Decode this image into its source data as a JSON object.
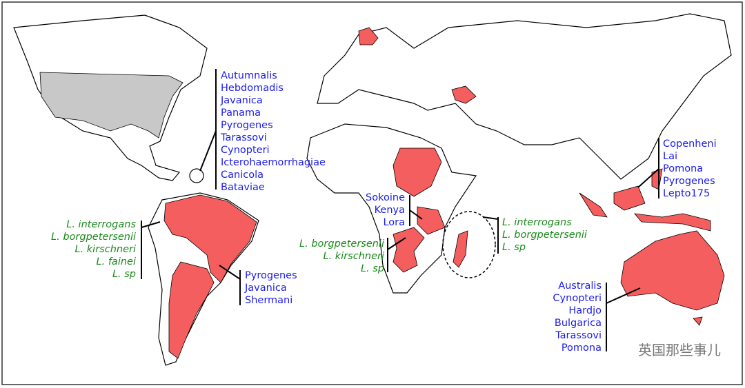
{
  "label_groups": [
    {
      "items": [
        "Autumnalis",
        "Hebdomadis",
        "Javanica",
        "Panama",
        "Pyrogenes",
        "Tarassovi",
        "Cynopteri",
        "Icterohaemorrhagiae",
        "Canicola",
        "Bataviae"
      ]
    },
    {
      "items": [
        "L. interrogans",
        "L. borgpetersenii",
        "L. kirschneri",
        "L. fainei",
        "L. sp"
      ]
    },
    {
      "items": [
        "Pyrogenes",
        "Javanica",
        "Shermani"
      ]
    },
    {
      "items": [
        "Sokoine",
        "Kenya",
        "Lora"
      ]
    },
    {
      "items": [
        "L. borgpetersenii",
        "L. kirschneri",
        "L. sp"
      ]
    },
    {
      "items": [
        "L. interrogans",
        "L. borgpetersenii",
        "L. sp"
      ]
    },
    {
      "items": [
        "Copenheni",
        "Lai",
        "Pomona",
        "Pyrogenes",
        "Lepto175"
      ]
    },
    {
      "items": [
        "Australis",
        "Cynopteri",
        "Hardjo",
        "Bulgarica",
        "Tarassovi",
        "Pomona"
      ]
    }
  ],
  "watermark": "英国那些事儿"
}
